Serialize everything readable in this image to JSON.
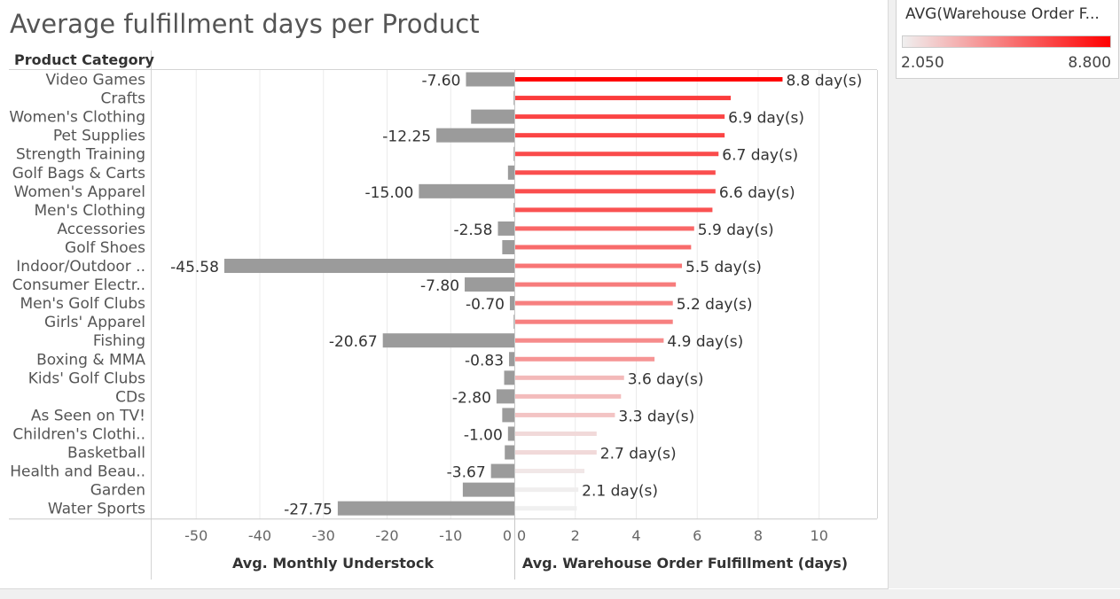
{
  "title": "Average fulfillment days per Product",
  "legend": {
    "title": "AVG(Warehouse Order F...",
    "min_label": "2.050",
    "max_label": "8.800",
    "min_color": "#f0f0f0",
    "max_color": "#ff0000"
  },
  "chart_data": {
    "type": "bar",
    "row_header": "Product Category",
    "categories": [
      "Video Games",
      "Crafts",
      "Women's Clothing",
      "Pet Supplies",
      "Strength Training",
      "Golf Bags & Carts",
      "Women's Apparel",
      "Men's Clothing",
      "Accessories",
      "Golf Shoes",
      "Indoor/Outdoor ..",
      "Consumer Electr..",
      "Men's Golf Clubs",
      "Girls' Apparel",
      "Fishing",
      "Boxing & MMA",
      "Kids' Golf Clubs",
      "CDs",
      "As Seen on  TV!",
      "Children's Clothi..",
      "Basketball",
      "Health and Beau..",
      "Garden",
      "Water Sports"
    ],
    "panes": [
      {
        "name": "understock",
        "xlabel": "Avg. Monthly Understock",
        "xlim": [
          -57,
          0
        ],
        "ticks": [
          -50,
          -40,
          -30,
          -20,
          -10,
          0
        ],
        "tick_labels": [
          "-50",
          "-40",
          "-30",
          "-20",
          "-10",
          "0"
        ],
        "bar_color": "#9b9b9b",
        "values": [
          -7.6,
          -0.1,
          -6.8,
          -12.25,
          -0.1,
          -1.0,
          -15.0,
          -0.1,
          -2.58,
          -1.9,
          -45.58,
          -7.8,
          -0.7,
          -0.1,
          -20.67,
          -0.83,
          -1.6,
          -2.8,
          -1.9,
          -1.0,
          -1.5,
          -3.67,
          -8.1,
          -27.75
        ],
        "labels": [
          "-7.60",
          "",
          "",
          "-12.25",
          "",
          "",
          "-15.00",
          "",
          "-2.58",
          "",
          "-45.58",
          "-7.80",
          "-0.70",
          "",
          "-20.67",
          "-0.83",
          "",
          "-2.80",
          "",
          "-1.00",
          "",
          "-3.67",
          "",
          "-27.75"
        ]
      },
      {
        "name": "fulfillment",
        "xlabel": "Avg. Warehouse Order Fulfillment (days)",
        "xlim": [
          0,
          11.9
        ],
        "ticks": [
          0,
          2,
          4,
          6,
          8,
          10
        ],
        "tick_labels": [
          "0",
          "2",
          "4",
          "6",
          "8",
          "10"
        ],
        "values": [
          8.8,
          7.1,
          6.9,
          6.9,
          6.7,
          6.6,
          6.6,
          6.5,
          5.9,
          5.8,
          5.5,
          5.3,
          5.2,
          5.2,
          4.9,
          4.6,
          3.6,
          3.5,
          3.3,
          2.7,
          2.7,
          2.3,
          2.1,
          2.05
        ],
        "labels": [
          "8.8 day(s)",
          "",
          "6.9 day(s)",
          "",
          "6.7 day(s)",
          "",
          "6.6 day(s)",
          "",
          "5.9 day(s)",
          "",
          "5.5 day(s)",
          "",
          "5.2 day(s)",
          "",
          "4.9 day(s)",
          "",
          "3.6 day(s)",
          "",
          "3.3 day(s)",
          "",
          "2.7 day(s)",
          "",
          "2.1 day(s)",
          ""
        ]
      }
    ]
  }
}
